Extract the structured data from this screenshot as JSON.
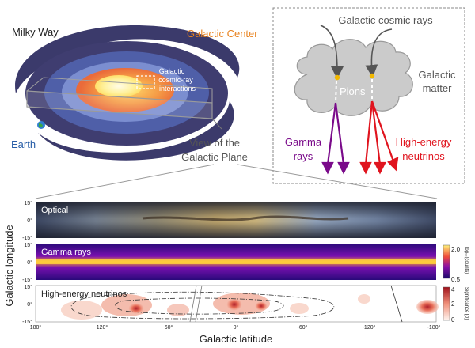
{
  "galaxy": {
    "title": "Milky Way",
    "galactic_center": "Galactic Center",
    "interaction_line1": "Galactic",
    "interaction_line2": "cosmic-ray",
    "interaction_line3": "interactions",
    "earth": "Earth",
    "view_line1": "View of the",
    "view_line2": "Galactic Plane"
  },
  "inset": {
    "cosmic_rays": "Galactic cosmic rays",
    "pions": "Pions",
    "matter_line1": "Galactic",
    "matter_line2": "matter",
    "gamma_line1": "Gamma",
    "gamma_line2": "rays",
    "neutrino_line1": "High-energy",
    "neutrino_line2": "neutrinos"
  },
  "panels": {
    "optical_label": "Optical",
    "gamma_label": "Gamma rays",
    "neutrino_label": "High-energy neutrinos",
    "y_ticks": [
      "15°",
      "0°",
      "-15°"
    ],
    "x_ticks": [
      "180°",
      "120°",
      "60°",
      "0°",
      "-60°",
      "-120°",
      "-180°"
    ],
    "y_axis_label": "Galactic longitude",
    "x_axis_label": "Galactic latitude",
    "gamma_colorbar": {
      "label": "log₁₀(counts)",
      "max": "2.0",
      "min": "0.5"
    },
    "neutrino_colorbar": {
      "label": "Significance [σ]",
      "ticks": [
        "4",
        "2",
        "0"
      ]
    }
  },
  "colors": {
    "galactic_center": "#e8821e",
    "earth": "#2a5fa8",
    "gamma": "#7a0a8a",
    "neutrino": "#e0141e",
    "pion_dot": "#f2b800"
  }
}
